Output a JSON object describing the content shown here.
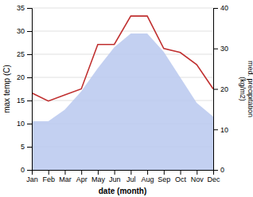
{
  "chart_data": {
    "type": "line",
    "categories": [
      "Jan",
      "Feb",
      "Mar",
      "Apr",
      "May",
      "Jun",
      "Jul",
      "Aug",
      "Sep",
      "Oct",
      "Nov",
      "Dec"
    ],
    "series": [
      {
        "type": "area",
        "color": "#b8c8ee",
        "values": [
          10.5,
          10.5,
          13.0,
          17.0,
          22.0,
          26.5,
          29.5,
          29.5,
          25.5,
          20.0,
          14.5,
          11.5
        ]
      },
      {
        "type": "line",
        "color": "#c03030",
        "axis": "y2",
        "values": [
          19.0,
          17.0,
          18.5,
          20.0,
          31.0,
          31.0,
          38.0,
          38.0,
          30.0,
          29.0,
          26.0,
          20.0
        ]
      }
    ],
    "xlabel": "date (month)",
    "ylabel": "max temp (C)",
    "y2label": "med. precipitation\n(kg/m2)",
    "ylim": [
      0,
      35
    ],
    "yticks": [
      0,
      5,
      10,
      15,
      20,
      25,
      30,
      35
    ],
    "y2lim": [
      0,
      40
    ],
    "y2ticks": [
      0,
      10,
      20,
      30,
      40
    ],
    "grid": true
  }
}
